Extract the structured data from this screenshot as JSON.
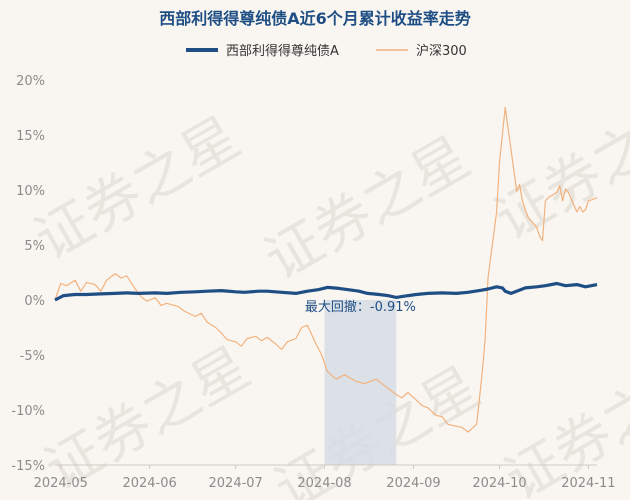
{
  "chart_data": {
    "type": "line",
    "title": "西部利得得尊纯债A近6个月累计收益率走势",
    "legend_position": "top",
    "watermark": "证券之星",
    "ylim": [
      -15,
      20
    ],
    "yticks": [
      20,
      15,
      10,
      5,
      0,
      -5,
      -10,
      -15
    ],
    "ytick_labels": [
      "20%",
      "15%",
      "10%",
      "5%",
      "0%",
      "-5%",
      "-10%",
      "-15%"
    ],
    "grid": false,
    "x_start": "2024-04-29",
    "x_end": "2024-11-04",
    "xtick_labels": [
      "2024-05",
      "2024-06",
      "2024-07",
      "2024-08",
      "2024-09",
      "2024-10",
      "2024-11"
    ],
    "xtick_dates": [
      "2024-05-01",
      "2024-06-01",
      "2024-07-01",
      "2024-08-01",
      "2024-09-01",
      "2024-10-01",
      "2024-11-01"
    ],
    "drawdown": {
      "label": "最大回撤：-0.91%",
      "start": "2024-08-01",
      "end": "2024-08-26"
    },
    "series": [
      {
        "name": "西部利得得尊纯债A",
        "color": "#1f4e84",
        "points": [
          [
            "2024-04-29",
            0.0
          ],
          [
            "2024-05-02",
            0.4
          ],
          [
            "2024-05-06",
            0.5
          ],
          [
            "2024-05-10",
            0.5
          ],
          [
            "2024-05-15",
            0.55
          ],
          [
            "2024-05-20",
            0.6
          ],
          [
            "2024-05-24",
            0.65
          ],
          [
            "2024-05-28",
            0.6
          ],
          [
            "2024-06-03",
            0.65
          ],
          [
            "2024-06-07",
            0.6
          ],
          [
            "2024-06-12",
            0.7
          ],
          [
            "2024-06-17",
            0.75
          ],
          [
            "2024-06-21",
            0.8
          ],
          [
            "2024-06-26",
            0.85
          ],
          [
            "2024-07-01",
            0.75
          ],
          [
            "2024-07-04",
            0.7
          ],
          [
            "2024-07-09",
            0.8
          ],
          [
            "2024-07-12",
            0.8
          ],
          [
            "2024-07-17",
            0.7
          ],
          [
            "2024-07-22",
            0.6
          ],
          [
            "2024-07-26",
            0.8
          ],
          [
            "2024-07-30",
            0.95
          ],
          [
            "2024-08-02",
            1.15
          ],
          [
            "2024-08-06",
            1.05
          ],
          [
            "2024-08-09",
            0.95
          ],
          [
            "2024-08-13",
            0.8
          ],
          [
            "2024-08-16",
            0.6
          ],
          [
            "2024-08-20",
            0.5
          ],
          [
            "2024-08-23",
            0.4
          ],
          [
            "2024-08-26",
            0.24
          ],
          [
            "2024-08-29",
            0.35
          ],
          [
            "2024-09-02",
            0.5
          ],
          [
            "2024-09-06",
            0.6
          ],
          [
            "2024-09-11",
            0.65
          ],
          [
            "2024-09-16",
            0.6
          ],
          [
            "2024-09-20",
            0.7
          ],
          [
            "2024-09-25",
            0.9
          ],
          [
            "2024-09-27",
            1.0
          ],
          [
            "2024-09-30",
            1.2
          ],
          [
            "2024-10-02",
            1.1
          ],
          [
            "2024-10-03",
            0.8
          ],
          [
            "2024-10-05",
            0.6
          ],
          [
            "2024-10-08",
            0.9
          ],
          [
            "2024-10-10",
            1.1
          ],
          [
            "2024-10-14",
            1.2
          ],
          [
            "2024-10-17",
            1.3
          ],
          [
            "2024-10-21",
            1.5
          ],
          [
            "2024-10-24",
            1.3
          ],
          [
            "2024-10-28",
            1.4
          ],
          [
            "2024-10-31",
            1.2
          ],
          [
            "2024-11-04",
            1.4
          ]
        ]
      },
      {
        "name": "沪深300",
        "color": "#f2b27e",
        "points": [
          [
            "2024-04-29",
            0.0
          ],
          [
            "2024-05-01",
            1.5
          ],
          [
            "2024-05-03",
            1.3
          ],
          [
            "2024-05-06",
            1.8
          ],
          [
            "2024-05-08",
            0.8
          ],
          [
            "2024-05-10",
            1.6
          ],
          [
            "2024-05-13",
            1.4
          ],
          [
            "2024-05-15",
            0.8
          ],
          [
            "2024-05-17",
            1.8
          ],
          [
            "2024-05-20",
            2.4
          ],
          [
            "2024-05-22",
            2.0
          ],
          [
            "2024-05-24",
            2.2
          ],
          [
            "2024-05-27",
            1.0
          ],
          [
            "2024-05-29",
            0.3
          ],
          [
            "2024-05-31",
            -0.1
          ],
          [
            "2024-06-03",
            0.2
          ],
          [
            "2024-06-05",
            -0.5
          ],
          [
            "2024-06-07",
            -0.3
          ],
          [
            "2024-06-11",
            -0.6
          ],
          [
            "2024-06-13",
            -1.0
          ],
          [
            "2024-06-17",
            -1.5
          ],
          [
            "2024-06-19",
            -1.2
          ],
          [
            "2024-06-21",
            -2.0
          ],
          [
            "2024-06-24",
            -2.5
          ],
          [
            "2024-06-26",
            -3.0
          ],
          [
            "2024-06-28",
            -3.6
          ],
          [
            "2024-07-01",
            -3.8
          ],
          [
            "2024-07-03",
            -4.2
          ],
          [
            "2024-07-05",
            -3.5
          ],
          [
            "2024-07-08",
            -3.3
          ],
          [
            "2024-07-10",
            -3.7
          ],
          [
            "2024-07-12",
            -3.4
          ],
          [
            "2024-07-15",
            -4.0
          ],
          [
            "2024-07-17",
            -4.5
          ],
          [
            "2024-07-19",
            -3.8
          ],
          [
            "2024-07-22",
            -3.5
          ],
          [
            "2024-07-24",
            -2.5
          ],
          [
            "2024-07-26",
            -2.3
          ],
          [
            "2024-07-29",
            -4.0
          ],
          [
            "2024-07-31",
            -5.0
          ],
          [
            "2024-08-02",
            -6.5
          ],
          [
            "2024-08-05",
            -7.2
          ],
          [
            "2024-08-08",
            -6.8
          ],
          [
            "2024-08-12",
            -7.4
          ],
          [
            "2024-08-15",
            -7.6
          ],
          [
            "2024-08-19",
            -7.2
          ],
          [
            "2024-08-22",
            -7.8
          ],
          [
            "2024-08-26",
            -8.6
          ],
          [
            "2024-08-28",
            -8.9
          ],
          [
            "2024-08-30",
            -8.4
          ],
          [
            "2024-09-02",
            -9.1
          ],
          [
            "2024-09-04",
            -9.6
          ],
          [
            "2024-09-06",
            -9.8
          ],
          [
            "2024-09-09",
            -10.5
          ],
          [
            "2024-09-11",
            -10.6
          ],
          [
            "2024-09-13",
            -11.3
          ],
          [
            "2024-09-18",
            -11.6
          ],
          [
            "2024-09-20",
            -12.0
          ],
          [
            "2024-09-23",
            -11.3
          ],
          [
            "2024-09-24",
            -9.0
          ],
          [
            "2024-09-25",
            -6.5
          ],
          [
            "2024-09-26",
            -3.5
          ],
          [
            "2024-09-27",
            2.0
          ],
          [
            "2024-09-30",
            8.0
          ],
          [
            "2024-10-01",
            12.5
          ],
          [
            "2024-10-03",
            17.5
          ],
          [
            "2024-10-07",
            9.9
          ],
          [
            "2024-10-08",
            10.5
          ],
          [
            "2024-10-09",
            9.0
          ],
          [
            "2024-10-10",
            8.2
          ],
          [
            "2024-10-11",
            7.5
          ],
          [
            "2024-10-14",
            6.6
          ],
          [
            "2024-10-15",
            5.8
          ],
          [
            "2024-10-16",
            5.4
          ],
          [
            "2024-10-17",
            9.0
          ],
          [
            "2024-10-18",
            9.3
          ],
          [
            "2024-10-21",
            9.8
          ],
          [
            "2024-10-22",
            10.4
          ],
          [
            "2024-10-23",
            9.0
          ],
          [
            "2024-10-24",
            10.1
          ],
          [
            "2024-10-25",
            9.8
          ],
          [
            "2024-10-28",
            8.0
          ],
          [
            "2024-10-29",
            8.5
          ],
          [
            "2024-10-30",
            8.0
          ],
          [
            "2024-10-31",
            8.2
          ],
          [
            "2024-11-01",
            9.0
          ],
          [
            "2024-11-04",
            9.3
          ]
        ]
      }
    ]
  }
}
